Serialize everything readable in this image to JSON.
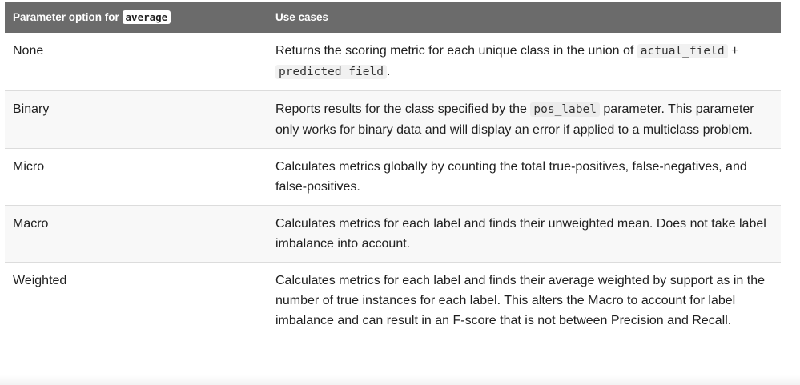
{
  "table": {
    "header": {
      "col1_prefix": "Parameter option for ",
      "col1_code": "average",
      "col2": "Use cases"
    },
    "rows": [
      {
        "option": "None",
        "desc_part1": "Returns the scoring metric for each unique class in the union of ",
        "code1": "actual_field",
        "desc_part2": " + ",
        "code2": "predicted_field",
        "desc_part3": "."
      },
      {
        "option": "Binary",
        "desc_part1": "Reports results for the class specified by the ",
        "code1": "pos_label",
        "desc_part2": " parameter. This parameter only works for binary data and will display an error if applied to a multiclass problem."
      },
      {
        "option": "Micro",
        "desc": "Calculates metrics globally by counting the total true-positives, false-negatives, and false-positives."
      },
      {
        "option": "Macro",
        "desc": "Calculates metrics for each label and finds their unweighted mean. Does not take label imbalance into account."
      },
      {
        "option": "Weighted",
        "desc": "Calculates metrics for each label and finds their average weighted by support as in the number of true instances for each label. This alters the Macro to account for label imbalance and can result in an F-score that is not between Precision and Recall."
      }
    ]
  }
}
